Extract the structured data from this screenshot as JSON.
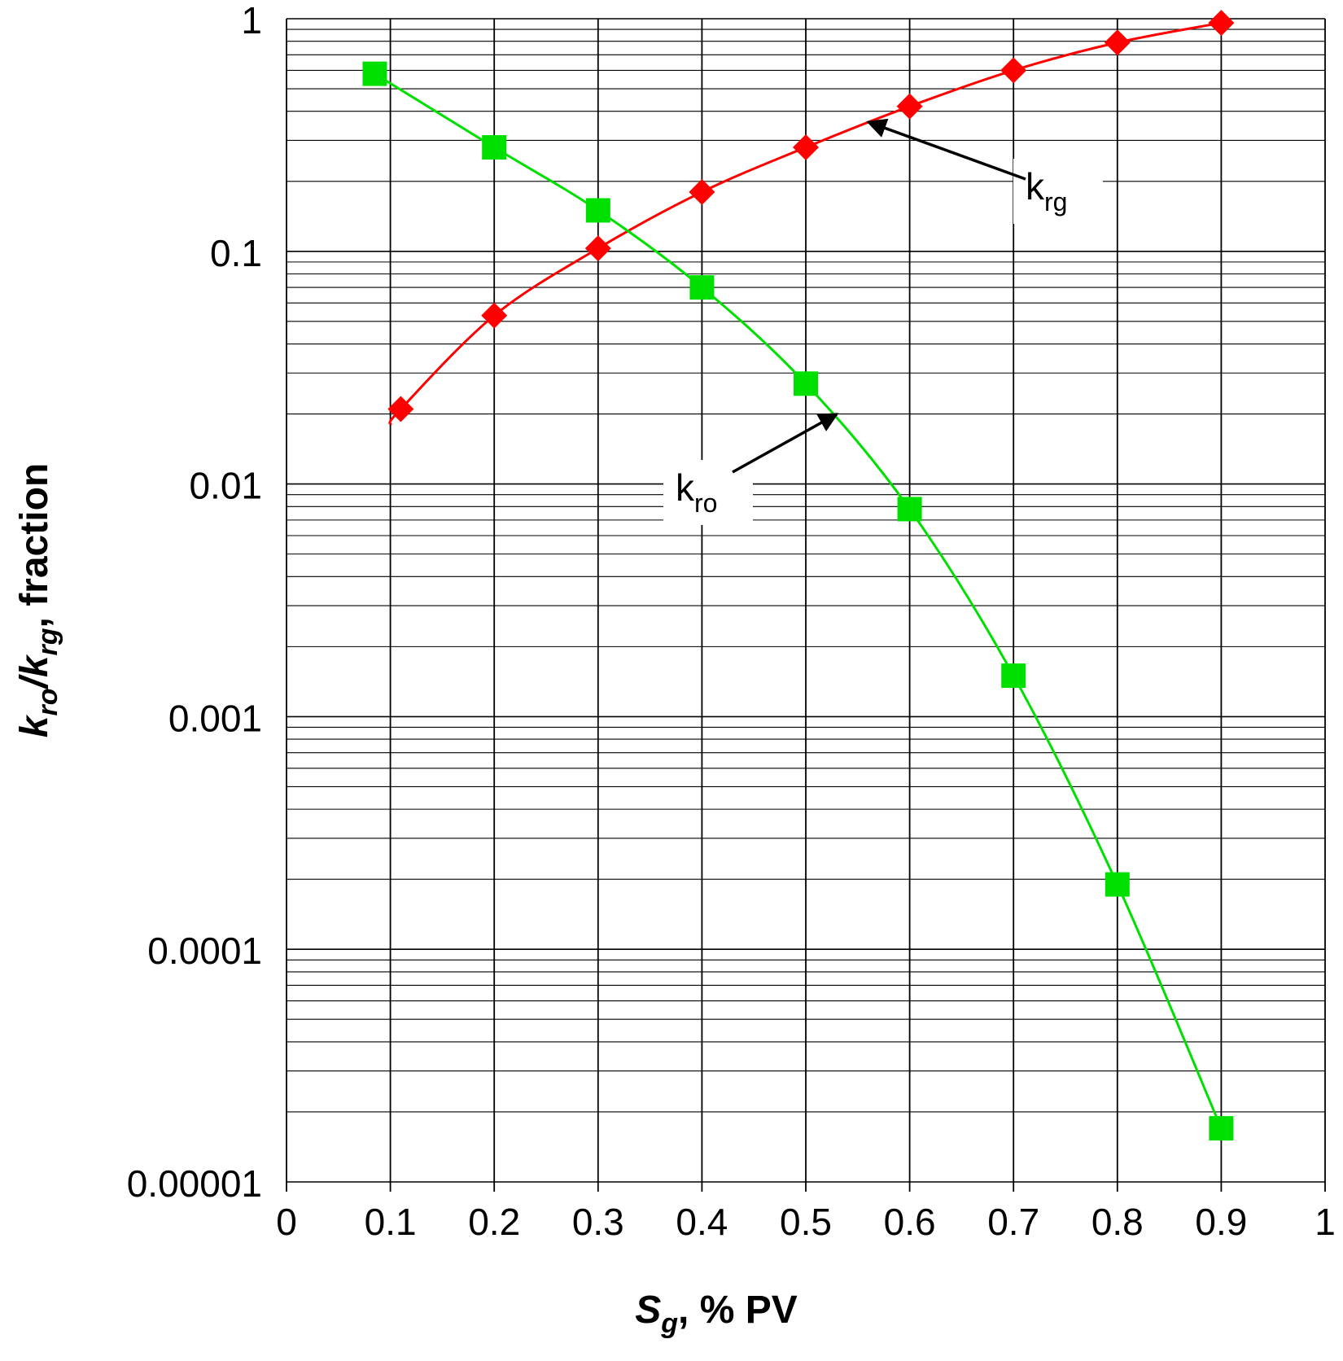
{
  "chart_data": {
    "type": "scatter",
    "title": "",
    "xlabel": {
      "main": "S",
      "sub": "g",
      "rest": ", % PV"
    },
    "ylabel": {
      "a": "k",
      "a_sub": "ro",
      "slash": "/",
      "b": "k",
      "b_sub": "rg",
      "rest": ", fraction"
    },
    "xlim": [
      0,
      1
    ],
    "ylim": [
      1e-05,
      1
    ],
    "yscale": "log",
    "grid": true,
    "x_ticks": [
      {
        "value": 0,
        "label": "0"
      },
      {
        "value": 0.1,
        "label": "0.1"
      },
      {
        "value": 0.2,
        "label": "0.2"
      },
      {
        "value": 0.3,
        "label": "0.3"
      },
      {
        "value": 0.4,
        "label": "0.4"
      },
      {
        "value": 0.5,
        "label": "0.5"
      },
      {
        "value": 0.6,
        "label": "0.6"
      },
      {
        "value": 0.7,
        "label": "0.7"
      },
      {
        "value": 0.8,
        "label": "0.8"
      },
      {
        "value": 0.9,
        "label": "0.9"
      },
      {
        "value": 1,
        "label": "1"
      }
    ],
    "y_ticks": [
      {
        "value": 1,
        "label": "1"
      },
      {
        "value": 0.1,
        "label": "0.1"
      },
      {
        "value": 0.01,
        "label": "0.01"
      },
      {
        "value": 0.001,
        "label": "0.001"
      },
      {
        "value": 0.0001,
        "label": "0.0001"
      },
      {
        "value": 1e-05,
        "label": "0.00001"
      }
    ],
    "series": [
      {
        "name": "krg",
        "color": "#ff0000",
        "marker": "diamond",
        "x": [
          0.11,
          0.2,
          0.3,
          0.4,
          0.5,
          0.6,
          0.7,
          0.8,
          0.9
        ],
        "y": [
          0.021,
          0.053,
          0.103,
          0.18,
          0.28,
          0.42,
          0.6,
          0.79,
          0.96
        ],
        "curve_start": {
          "x": 0.1,
          "y": 0.018
        }
      },
      {
        "name": "kro",
        "color": "#00e000",
        "marker": "square",
        "x": [
          0.085,
          0.2,
          0.3,
          0.4,
          0.5,
          0.6,
          0.7,
          0.8,
          0.9
        ],
        "y": [
          0.58,
          0.28,
          0.15,
          0.07,
          0.027,
          0.0078,
          0.0015,
          0.00019,
          1.7e-05
        ]
      }
    ],
    "annotations": [
      {
        "label": "k",
        "sub": "rg",
        "series": "krg",
        "arrow_tip": {
          "x": 0.56,
          "y": 0.36
        }
      },
      {
        "label": "k",
        "sub": "ro",
        "series": "kro",
        "arrow_tip": {
          "x": 0.53,
          "y": 0.02
        }
      }
    ]
  }
}
